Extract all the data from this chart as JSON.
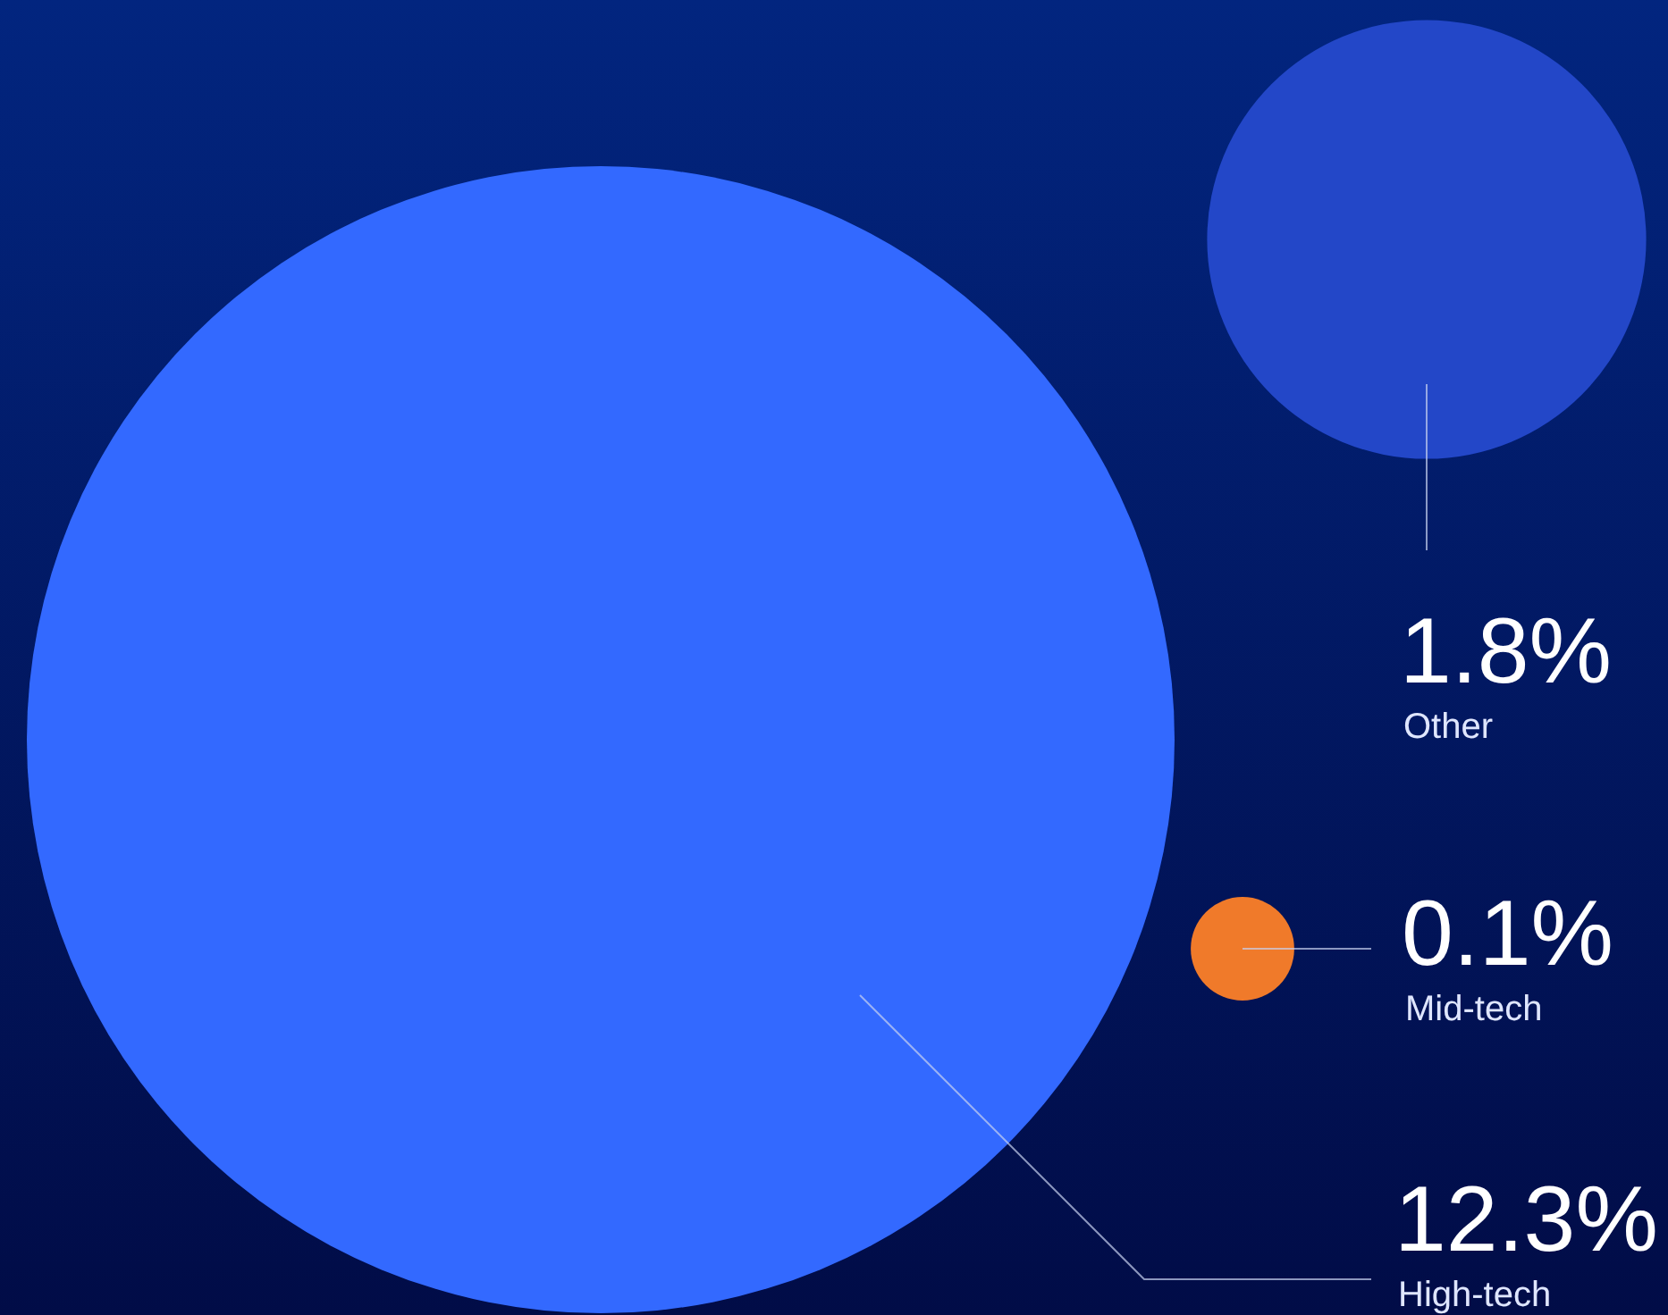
{
  "chart_data": {
    "type": "other",
    "categories": [
      "High-tech",
      "Mid-tech",
      "Other"
    ],
    "values": [
      12.3,
      0.1,
      1.8
    ],
    "value_labels": [
      "12.3%",
      "0.1%",
      "1.8%"
    ],
    "colors": [
      "#3369ff",
      "#f07a2a",
      "#2347c8"
    ]
  }
}
